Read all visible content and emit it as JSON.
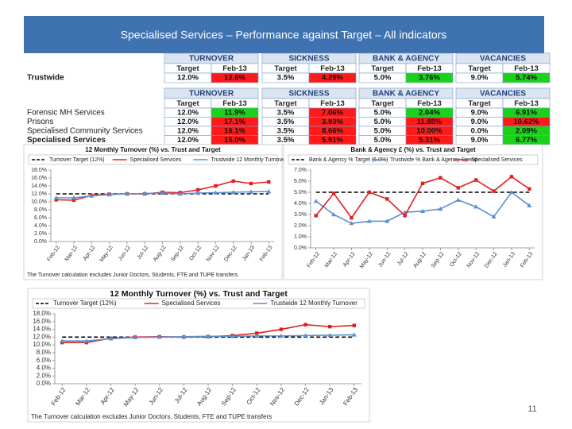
{
  "header": {
    "title": "Specialised Services – Performance against Target – All indicators"
  },
  "table": {
    "groups": [
      "TURNOVER",
      "SICKNESS",
      "BANK & AGENCY",
      "VACANCIES"
    ],
    "columns": [
      "Target",
      "Feb-13"
    ],
    "colors": {
      "red": "#ff1a1a",
      "green": "#19d219"
    },
    "summary_rows": [
      {
        "label": "Trustwide",
        "cells": [
          "12.0%",
          "12.6%",
          "3.5%",
          "4.29%",
          "5.0%",
          "3.76%",
          "9.0%",
          "5.74%"
        ],
        "status": [
          "red",
          "red",
          "green",
          "green"
        ]
      }
    ],
    "rows": [
      {
        "label": "Forensic MH Services",
        "cells": [
          "12.0%",
          "11.9%",
          "3.5%",
          "7.06%",
          "5.0%",
          "2.04%",
          "9.0%",
          "6.91%"
        ],
        "status": [
          "green",
          "red",
          "green",
          "green"
        ]
      },
      {
        "label": "Prisons",
        "cells": [
          "12.0%",
          "17.1%",
          "3.5%",
          "3.93%",
          "5.0%",
          "11.85%",
          "9.0%",
          "10.62%"
        ],
        "status": [
          "red",
          "red",
          "red",
          "red"
        ]
      },
      {
        "label": "Specialised Community Services",
        "cells": [
          "12.0%",
          "16.1%",
          "3.5%",
          "8.66%",
          "5.0%",
          "10.00%",
          "0.0%",
          "2.09%"
        ],
        "status": [
          "red",
          "red",
          "red",
          "green"
        ]
      },
      {
        "label": "Specialised Services",
        "cells": [
          "12.0%",
          "15.0%",
          "3.5%",
          "5.91%",
          "5.0%",
          "5.31%",
          "9.0%",
          "6.77%"
        ],
        "status": [
          "red",
          "red",
          "red",
          "green"
        ]
      }
    ]
  },
  "chart_data": [
    {
      "type": "line",
      "title": "12 Monthly Turnover (%) vs. Trust and Target",
      "note": "The Turnover calculation excludes Junior Doctors, Students, FTE and TUPE transfers",
      "categories": [
        "Feb-12",
        "Mar-12",
        "Apr-12",
        "May-12",
        "Jun-12",
        "Jul-12",
        "Aug-12",
        "Sep-12",
        "Oct-12",
        "Nov-12",
        "Dec-12",
        "Jan-13",
        "Feb-13"
      ],
      "series": [
        {
          "name": "Turnover Target (12%)",
          "color": "#000000",
          "line_style": "dashed",
          "marker": "none",
          "values": [
            12,
            12,
            12,
            12,
            12,
            12,
            12,
            12,
            12,
            12,
            12,
            12,
            12
          ]
        },
        {
          "name": "Specialised Services",
          "color": "#e02020",
          "line_style": "solid",
          "marker": "square",
          "values": [
            10.5,
            10.4,
            11.6,
            11.9,
            12.0,
            12.0,
            12.4,
            12.3,
            13.0,
            14.0,
            15.2,
            14.6,
            15.0
          ]
        },
        {
          "name": "Trustwide 12 Monthly Turnover",
          "color": "#5b8fd0",
          "line_style": "solid",
          "marker": "triangle",
          "values": [
            11.0,
            11.0,
            11.5,
            11.8,
            12.0,
            12.1,
            12.2,
            12.0,
            12.2,
            12.3,
            12.4,
            12.5,
            12.6
          ]
        }
      ],
      "ylim": [
        0,
        18
      ],
      "yticks": [
        {
          "value": 0,
          "label": "0.0%"
        },
        {
          "value": 2,
          "label": "2.0%"
        },
        {
          "value": 4,
          "label": "4.0%"
        },
        {
          "value": 6,
          "label": "6.0%"
        },
        {
          "value": 8,
          "label": "8.0%"
        },
        {
          "value": 10,
          "label": "10.0%"
        },
        {
          "value": 12,
          "label": "12.0%"
        },
        {
          "value": 14,
          "label": "14.0%"
        },
        {
          "value": 16,
          "label": "16.0%"
        },
        {
          "value": 18,
          "label": "18.0%"
        }
      ]
    },
    {
      "type": "line",
      "title": "Bank & Agency £ (%) vs. Trust and Target",
      "categories": [
        "Feb-12",
        "Mar-12",
        "Apr-12",
        "May-12",
        "Jun-12",
        "Jul-12",
        "Aug-12",
        "Sep-12",
        "Oct-12",
        "Nov-12",
        "Dec-12",
        "Jan-13",
        "Feb-13"
      ],
      "series": [
        {
          "name": "Bank & Agency % Target (5.0%)",
          "color": "#000000",
          "line_style": "dashed",
          "marker": "none",
          "values": [
            5,
            5,
            5,
            5,
            5,
            5,
            5,
            5,
            5,
            5,
            5,
            5,
            5
          ]
        },
        {
          "name": "Trustwide % Bank & Agency Spend",
          "color": "#5b8fd0",
          "line_style": "solid",
          "marker": "triangle",
          "values": [
            4.2,
            3.0,
            2.2,
            2.4,
            2.4,
            3.2,
            3.3,
            3.5,
            4.3,
            3.7,
            2.8,
            5.0,
            3.8
          ]
        },
        {
          "name": "Specialised Services",
          "color": "#e02020",
          "line_style": "solid",
          "marker": "square",
          "values": [
            2.9,
            4.9,
            2.7,
            5.0,
            4.4,
            2.9,
            5.8,
            6.3,
            5.4,
            6.1,
            5.1,
            6.4,
            5.3
          ]
        }
      ],
      "ylim": [
        0,
        7
      ],
      "yticks": [
        {
          "value": 0,
          "label": "0.0%"
        },
        {
          "value": 1,
          "label": "1.0%"
        },
        {
          "value": 2,
          "label": "2.0%"
        },
        {
          "value": 3,
          "label": "3.0%"
        },
        {
          "value": 4,
          "label": "4.0%"
        },
        {
          "value": 5,
          "label": "5.0%"
        },
        {
          "value": 6,
          "label": "6.0%"
        },
        {
          "value": 7,
          "label": "7.0%"
        }
      ]
    },
    {
      "type": "line",
      "title": "12 Monthly Turnover (%) vs. Trust and Target",
      "note": "The Turnover calculation excludes Junior Doctors, Students, FTE and TUPE transfers",
      "categories": [
        "Feb-12",
        "Mar-12",
        "Apr-12",
        "May-12",
        "Jun-12",
        "Jul-12",
        "Aug-12",
        "Sep-12",
        "Oct-12",
        "Nov-12",
        "Dec-12",
        "Jan-13",
        "Feb-13"
      ],
      "series": [
        {
          "name": "Turnover Target (12%)",
          "color": "#000000",
          "line_style": "dashed",
          "marker": "none",
          "values": [
            12,
            12,
            12,
            12,
            12,
            12,
            12,
            12,
            12,
            12,
            12,
            12,
            12
          ]
        },
        {
          "name": "Specialised Services",
          "color": "#e02020",
          "line_style": "solid",
          "marker": "square",
          "values": [
            10.6,
            10.6,
            11.7,
            12.0,
            12.1,
            12.0,
            12.1,
            12.4,
            13.0,
            14.0,
            15.2,
            14.7,
            15.0
          ]
        },
        {
          "name": "Trustwide 12 Monthly Turnover",
          "color": "#5b8fd0",
          "line_style": "solid",
          "marker": "triangle",
          "values": [
            11.0,
            11.0,
            11.6,
            11.9,
            12.0,
            12.1,
            12.2,
            12.2,
            12.3,
            12.3,
            12.4,
            12.5,
            12.6
          ]
        }
      ],
      "ylim": [
        0,
        18
      ],
      "yticks": [
        {
          "value": 0,
          "label": "0.0%"
        },
        {
          "value": 2,
          "label": "2.0%"
        },
        {
          "value": 4,
          "label": "4.0%"
        },
        {
          "value": 6,
          "label": "6.0%"
        },
        {
          "value": 8,
          "label": "8.0%"
        },
        {
          "value": 10,
          "label": "10.0%"
        },
        {
          "value": 12,
          "label": "12.0%"
        },
        {
          "value": 14,
          "label": "14.0%"
        },
        {
          "value": 16,
          "label": "16.0%"
        },
        {
          "value": 18,
          "label": "18.0%"
        }
      ]
    }
  ],
  "footer": {
    "page_number": "11"
  }
}
